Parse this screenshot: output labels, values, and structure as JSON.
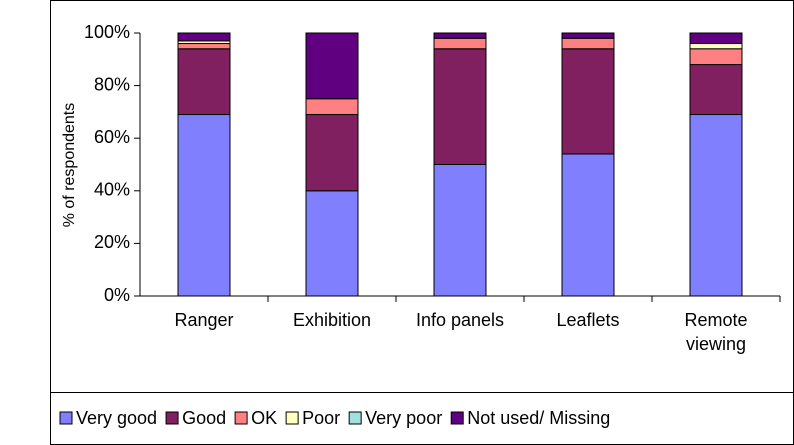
{
  "chart_data": {
    "type": "stacked_bar",
    "y_label": "% of respondents",
    "categories": [
      "Ranger",
      "Exhibition",
      "Info panels",
      "Leaflets",
      "Remote viewing"
    ],
    "series": [
      {
        "name": "Very good",
        "color": "#8080ff",
        "values": [
          69,
          40,
          50,
          54,
          69
        ]
      },
      {
        "name": "Good",
        "color": "#802060",
        "values": [
          25,
          29,
          44,
          40,
          19
        ]
      },
      {
        "name": "OK",
        "color": "#ff8080",
        "values": [
          2,
          6,
          4,
          4,
          6
        ]
      },
      {
        "name": "Poor",
        "color": "#ffffc0",
        "values": [
          1,
          0,
          0,
          0,
          2
        ]
      },
      {
        "name": "Very poor",
        "color": "#a0e0e0",
        "values": [
          0,
          0,
          0,
          0,
          0
        ]
      },
      {
        "name": "Not used/ Missing",
        "color": "#600080",
        "values": [
          3,
          25,
          2,
          2,
          4
        ]
      }
    ],
    "ylim": [
      0,
      100
    ],
    "yticks": [
      {
        "value": 0,
        "label": "0%"
      },
      {
        "value": 20,
        "label": "20%"
      },
      {
        "value": 40,
        "label": "40%"
      },
      {
        "value": 60,
        "label": "60%"
      },
      {
        "value": 80,
        "label": "80%"
      },
      {
        "value": 100,
        "label": "100%"
      }
    ],
    "legend": "bottom"
  }
}
